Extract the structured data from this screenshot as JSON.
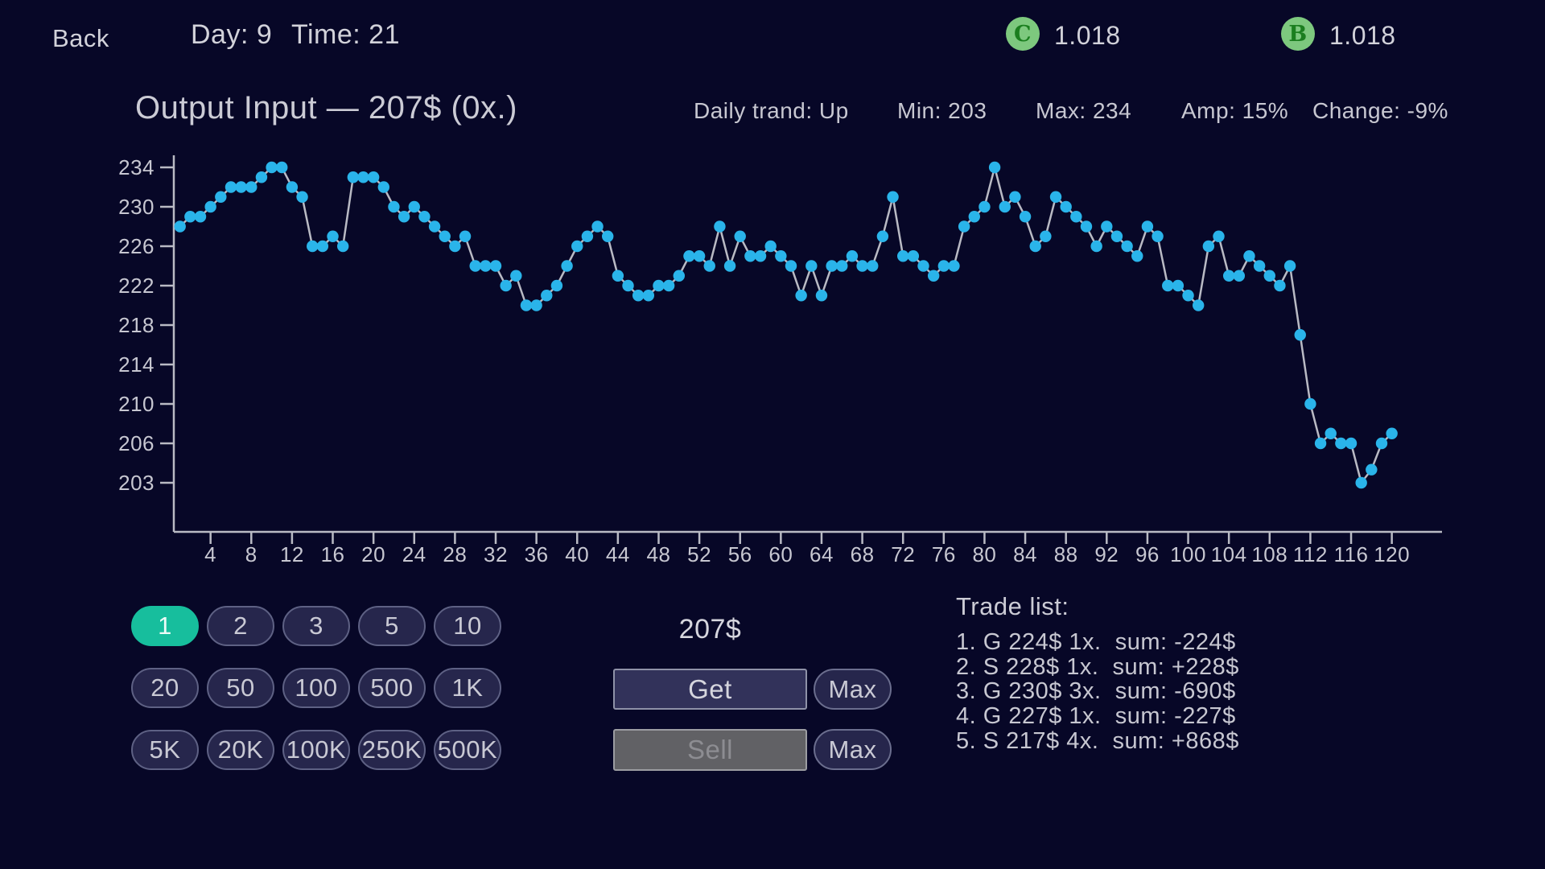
{
  "top_bar": {
    "back": "Back",
    "day": "Day: 9",
    "time": "Time: 21",
    "coin_c": {
      "letter": "C",
      "value": "1.018"
    },
    "coin_b": {
      "letter": "B",
      "value": "1.018"
    }
  },
  "header": {
    "title": "Output Input — 207$ (0x.)",
    "stats": {
      "trend": "Daily trand: Up",
      "min": "Min: 203",
      "max": "Max: 234",
      "amp": "Amp: 15%",
      "change": "Change: -9%"
    }
  },
  "chart_data": {
    "type": "line",
    "title": "Output Input — 207$ (0x.)",
    "xlabel": "",
    "ylabel": "",
    "x_start": 1,
    "x_ticks": [
      4,
      8,
      12,
      16,
      20,
      24,
      28,
      32,
      36,
      40,
      44,
      48,
      52,
      56,
      60,
      64,
      68,
      72,
      76,
      80,
      84,
      88,
      92,
      96,
      100,
      104,
      108,
      112,
      116,
      120
    ],
    "y_ticks": [
      234,
      230,
      226,
      222,
      218,
      214,
      210,
      206,
      203
    ],
    "ylim": [
      203,
      234
    ],
    "grid": false,
    "legend": "none",
    "values": [
      228,
      229,
      229,
      230,
      231,
      232,
      232,
      232,
      233,
      234,
      234,
      232,
      231,
      226,
      226,
      227,
      226,
      233,
      233,
      233,
      232,
      230,
      229,
      230,
      229,
      228,
      227,
      226,
      227,
      224,
      224,
      224,
      222,
      223,
      220,
      220,
      221,
      222,
      224,
      226,
      227,
      228,
      227,
      223,
      222,
      221,
      221,
      222,
      222,
      223,
      225,
      225,
      224,
      228,
      224,
      227,
      225,
      225,
      226,
      225,
      224,
      221,
      224,
      221,
      224,
      224,
      225,
      224,
      224,
      227,
      231,
      225,
      225,
      224,
      223,
      224,
      224,
      228,
      229,
      230,
      234,
      230,
      231,
      229,
      226,
      227,
      231,
      230,
      229,
      228,
      226,
      228,
      227,
      226,
      225,
      228,
      227,
      222,
      222,
      221,
      220,
      226,
      227,
      223,
      223,
      225,
      224,
      223,
      222,
      224,
      217,
      210,
      206,
      207,
      206,
      206,
      203,
      204,
      206,
      207
    ]
  },
  "trade_panel": {
    "rows": [
      [
        "1",
        "2",
        "3",
        "5",
        "10"
      ],
      [
        "20",
        "50",
        "100",
        "500",
        "1K"
      ],
      [
        "5K",
        "20K",
        "100K",
        "250K",
        "500K"
      ]
    ],
    "selected": "1",
    "price": "207$",
    "get": "Get",
    "sell": "Sell",
    "max": "Max"
  },
  "trade_list": {
    "title": "Trade list:",
    "entries": [
      "1. G 224$ 1x.  sum: -224$",
      "2. S 228$ 1x.  sum: +228$",
      "3. G 230$ 3x.  sum: -690$",
      "4. G 227$ 1x.  sum: -227$",
      "5. S 217$ 4x.  sum: +868$"
    ]
  },
  "colors": {
    "background": "#070727",
    "accent_teal": "#17be9d",
    "point": "#2ab4ea",
    "line": "#b9bac4",
    "axis": "#b9bac4",
    "coin_fill": "#7dc87e",
    "coin_letter": "#1b7e1f"
  }
}
